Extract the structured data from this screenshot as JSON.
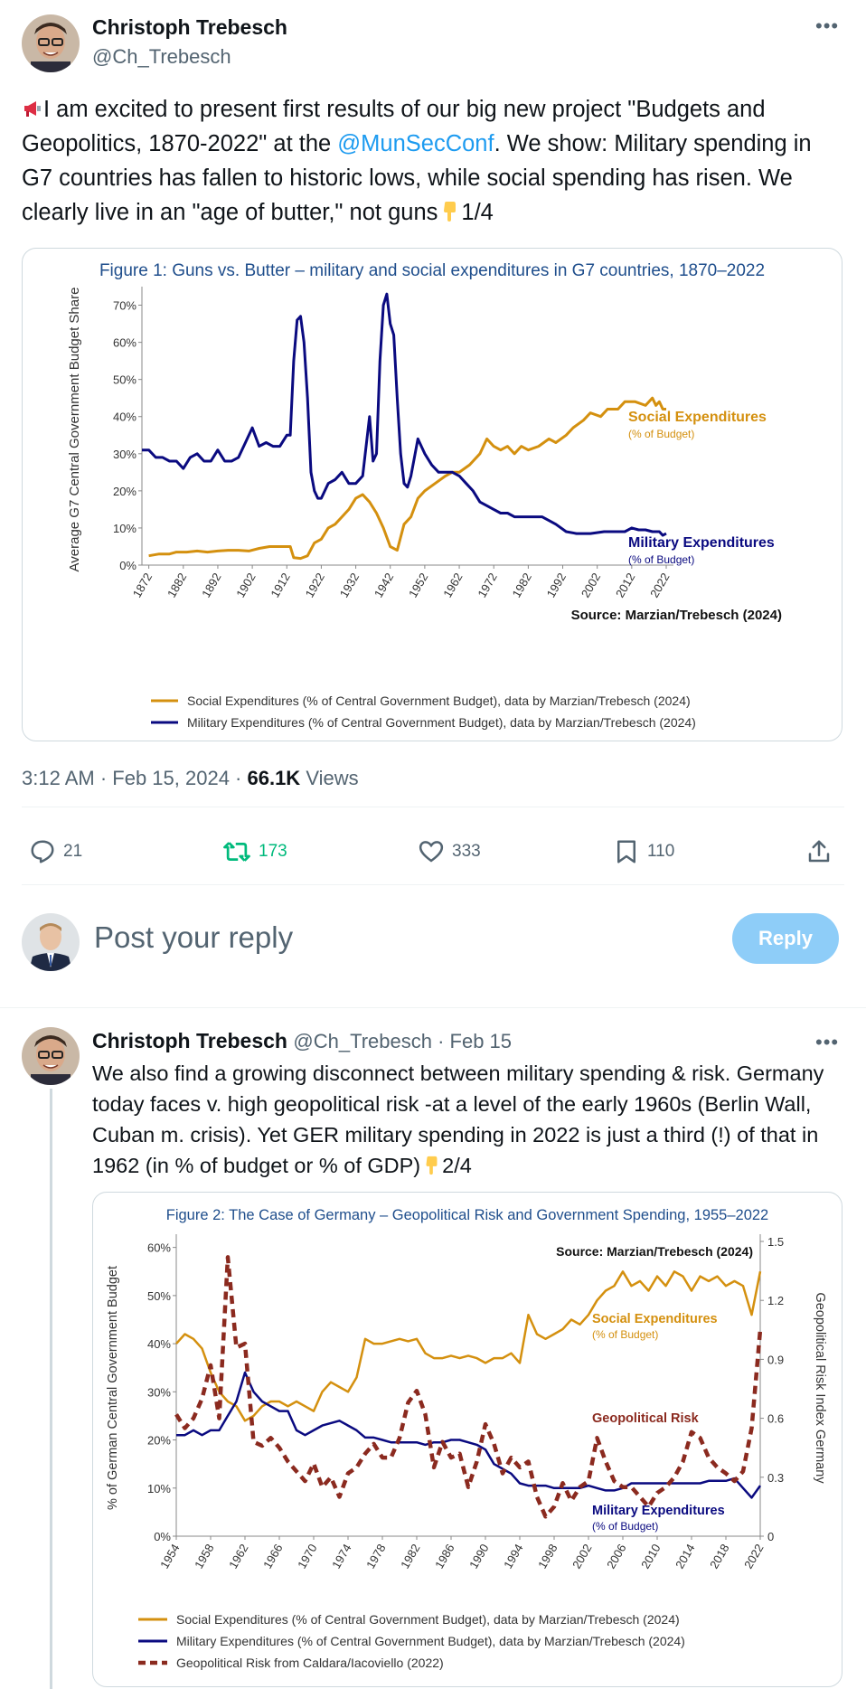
{
  "tweet1": {
    "author_name": "Christoph Trebesch",
    "author_handle": "@Ch_Trebesch",
    "text_before_mention": "I am excited to present first results of our big new project \"Budgets and Geopolitics, 1870-2022\" at the ",
    "mention": "@MunSecConf",
    "text_after_mention": ". We show: Military spending in G7 countries has fallen to historic lows, while social spending has risen. We clearly live in an \"age of butter,\" not guns",
    "counter": "1/4",
    "time": "3:12 AM · Feb 15, 2024 · ",
    "views_count": "66.1K",
    "views_label": " Views",
    "replies": "21",
    "reposts": "173",
    "likes": "333",
    "bookmarks": "110"
  },
  "reply_box": {
    "placeholder": "Post your reply",
    "button": "Reply"
  },
  "tweet2": {
    "author_name": "Christoph Trebesch",
    "author_handle": "@Ch_Trebesch",
    "date": " · Feb 15",
    "text": "We also find a growing disconnect between military spending & risk. Germany today faces v. high geopolitical risk -at a level of the early 1960s (Berlin Wall, Cuban m. crisis). Yet GER military spending in 2022 is just a third (!) of that in 1962 (in % of budget or % of GDP)",
    "counter": "2/4"
  },
  "colors": {
    "social": "#d4900f",
    "military": "#0a0a80",
    "geo": "#8b2a1f",
    "title": "#1f4e8c",
    "link": "#1d9bf0",
    "repost": "#00ba7c"
  },
  "chart_data": [
    {
      "type": "line",
      "title": "Figure 1: Guns vs. Butter – military and social expenditures in G7 countries, 1870–2022",
      "ylabel": "Average G7 Central Government Budget Share",
      "y_ticks": [
        "0%",
        "10%",
        "20%",
        "30%",
        "40%",
        "50%",
        "60%",
        "70%"
      ],
      "x_ticks": [
        "1872",
        "1882",
        "1892",
        "1902",
        "1912",
        "1922",
        "1932",
        "1942",
        "1952",
        "1962",
        "1972",
        "1982",
        "1992",
        "2002",
        "2012",
        "2022"
      ],
      "xlim": [
        1870,
        2022
      ],
      "ylim": [
        0,
        75
      ],
      "source": "Source: Marzian/Trebesch (2024)",
      "series": [
        {
          "name": "Social Expenditures (% of Central Government Budget), data by Marzian/Trebesch (2024)",
          "label": "Social Expenditures",
          "sublabel": "(% of Budget)",
          "x": [
            1872,
            1875,
            1878,
            1880,
            1883,
            1886,
            1889,
            1892,
            1895,
            1898,
            1901,
            1904,
            1907,
            1910,
            1913,
            1914,
            1916,
            1918,
            1920,
            1922,
            1924,
            1926,
            1928,
            1930,
            1932,
            1934,
            1936,
            1938,
            1940,
            1942,
            1944,
            1946,
            1948,
            1950,
            1952,
            1955,
            1958,
            1960,
            1962,
            1965,
            1968,
            1970,
            1972,
            1974,
            1976,
            1978,
            1980,
            1982,
            1985,
            1988,
            1990,
            1993,
            1995,
            1998,
            2000,
            2003,
            2005,
            2008,
            2010,
            2013,
            2016,
            2018,
            2019,
            2020,
            2021,
            2022
          ],
          "y": [
            2.5,
            3,
            3,
            3.5,
            3.5,
            3.8,
            3.5,
            3.8,
            4,
            4,
            3.8,
            4.5,
            5,
            5,
            5,
            2,
            1.8,
            2.5,
            6,
            7,
            10,
            11,
            13,
            15,
            18,
            19,
            17,
            14,
            10,
            5,
            4,
            11,
            13,
            18,
            20,
            22,
            24,
            25,
            25,
            27,
            30,
            34,
            32,
            31,
            32,
            30,
            32,
            31,
            32,
            34,
            33,
            35,
            37,
            39,
            41,
            40,
            42,
            42,
            44,
            44,
            43,
            45,
            43,
            44,
            42,
            42
          ]
        },
        {
          "name": "Military Expenditures (% of Central Government Budget), data by Marzian/Trebesch (2024)",
          "label": "Military Expenditures",
          "sublabel": "(% of Budget)",
          "x": [
            1870,
            1872,
            1874,
            1876,
            1878,
            1880,
            1882,
            1884,
            1886,
            1888,
            1890,
            1892,
            1894,
            1896,
            1898,
            1900,
            1902,
            1904,
            1906,
            1908,
            1910,
            1912,
            1913,
            1914,
            1915,
            1916,
            1917,
            1918,
            1919,
            1920,
            1921,
            1922,
            1924,
            1926,
            1928,
            1930,
            1932,
            1934,
            1936,
            1937,
            1938,
            1939,
            1940,
            1941,
            1942,
            1943,
            1944,
            1945,
            1946,
            1947,
            1948,
            1950,
            1952,
            1954,
            1956,
            1958,
            1960,
            1962,
            1964,
            1966,
            1968,
            1970,
            1972,
            1974,
            1976,
            1978,
            1980,
            1983,
            1986,
            1988,
            1990,
            1993,
            1996,
            2000,
            2004,
            2006,
            2008,
            2010,
            2012,
            2014,
            2016,
            2018,
            2020,
            2021,
            2022
          ],
          "y": [
            31,
            31,
            29,
            29,
            28,
            28,
            26,
            29,
            30,
            28,
            28,
            31,
            28,
            28,
            29,
            33,
            37,
            32,
            33,
            32,
            32,
            35,
            35,
            55,
            66,
            67,
            60,
            45,
            25,
            20,
            18,
            18,
            22,
            23,
            25,
            22,
            22,
            24,
            40,
            28,
            30,
            55,
            70,
            73,
            65,
            62,
            45,
            30,
            22,
            21,
            24,
            34,
            30,
            27,
            25,
            25,
            25,
            24,
            22,
            20,
            17,
            16,
            15,
            14,
            14,
            13,
            13,
            13,
            13,
            12,
            11,
            9,
            8.5,
            8.5,
            9,
            9,
            9,
            9,
            10,
            9.5,
            9.5,
            9,
            9,
            8,
            8.5
          ]
        }
      ]
    },
    {
      "type": "line",
      "title": "Figure 2: The Case of Germany – Geopolitical Risk and Government Spending, 1955–2022",
      "ylabel": "% of German Central Government Budget",
      "y2label": "Geopolitical Risk Index Germany",
      "y_ticks": [
        "0%",
        "10%",
        "20%",
        "30%",
        "40%",
        "50%",
        "60%"
      ],
      "y2_ticks": [
        "0",
        "0.3",
        "0.6",
        "0.9",
        "1.2",
        "1.5"
      ],
      "x_ticks": [
        "1954",
        "1958",
        "1962",
        "1966",
        "1970",
        "1974",
        "1978",
        "1982",
        "1986",
        "1990",
        "1994",
        "1998",
        "2002",
        "2006",
        "2010",
        "2014",
        "2018",
        "2022"
      ],
      "xlim": [
        1954,
        2022
      ],
      "ylim": [
        0,
        62
      ],
      "y2lim": [
        0,
        1.5
      ],
      "source": "Source: Marzian/Trebesch (2024)",
      "series": [
        {
          "name": "Social Expenditures (% of Central Government Budget), data by Marzian/Trebesch (2024)",
          "label": "Social Expenditures",
          "sublabel": "(% of Budget)",
          "x": [
            1954,
            1955,
            1956,
            1957,
            1958,
            1959,
            1960,
            1961,
            1962,
            1963,
            1964,
            1965,
            1966,
            1967,
            1968,
            1969,
            1970,
            1971,
            1972,
            1973,
            1974,
            1975,
            1976,
            1977,
            1978,
            1979,
            1980,
            1981,
            1982,
            1983,
            1984,
            1985,
            1986,
            1987,
            1988,
            1989,
            1990,
            1991,
            1992,
            1993,
            1994,
            1995,
            1996,
            1997,
            1998,
            1999,
            2000,
            2001,
            2002,
            2003,
            2004,
            2005,
            2006,
            2007,
            2008,
            2009,
            2010,
            2011,
            2012,
            2013,
            2014,
            2015,
            2016,
            2017,
            2018,
            2019,
            2020,
            2021,
            2022
          ],
          "y": [
            40,
            42,
            41,
            39,
            34,
            30,
            28,
            27,
            24,
            25,
            27,
            28,
            28,
            27,
            28,
            27,
            26,
            30,
            32,
            31,
            30,
            33,
            41,
            40,
            40,
            40.5,
            41,
            40.5,
            41,
            38,
            37,
            37,
            37.5,
            37,
            37.5,
            37,
            36,
            37,
            37,
            38,
            36,
            46,
            42,
            41,
            42,
            43,
            45,
            44,
            46,
            49,
            51,
            52,
            55,
            52,
            53,
            51,
            54,
            52,
            55,
            54,
            51,
            54,
            53,
            54,
            52,
            53,
            52,
            46,
            55
          ]
        },
        {
          "name": "Military Expenditures (% of Central Government Budget), data by Marzian/Trebesch (2024)",
          "label": "Military Expenditures",
          "sublabel": "(% of Budget)",
          "x": [
            1954,
            1955,
            1956,
            1957,
            1958,
            1959,
            1960,
            1961,
            1962,
            1963,
            1964,
            1965,
            1966,
            1967,
            1968,
            1969,
            1970,
            1971,
            1972,
            1973,
            1974,
            1975,
            1976,
            1977,
            1978,
            1979,
            1980,
            1981,
            1982,
            1983,
            1984,
            1985,
            1986,
            1987,
            1988,
            1989,
            1990,
            1991,
            1992,
            1993,
            1994,
            1995,
            1996,
            1997,
            1998,
            1999,
            2000,
            2001,
            2002,
            2003,
            2004,
            2005,
            2006,
            2007,
            2008,
            2009,
            2010,
            2011,
            2012,
            2013,
            2014,
            2015,
            2016,
            2017,
            2018,
            2019,
            2020,
            2021,
            2022
          ],
          "y": [
            21,
            21,
            22,
            21,
            22,
            22,
            25,
            28,
            34,
            30,
            28,
            27,
            26,
            26,
            22,
            21,
            22,
            23,
            23.5,
            24,
            23,
            22,
            20.5,
            20.5,
            20,
            19.5,
            19.5,
            19.5,
            19.5,
            19,
            19.5,
            19.5,
            20,
            20,
            19.5,
            19,
            18,
            15,
            14,
            13,
            11,
            10.5,
            10.5,
            10.5,
            10,
            10,
            10,
            10,
            10.5,
            10,
            9.5,
            9.5,
            10,
            11,
            11,
            11,
            11,
            11,
            11,
            11,
            11,
            11,
            11.5,
            11.5,
            11.5,
            12,
            10,
            8,
            10.5
          ]
        },
        {
          "name": "Geopolitical Risk from Caldara/Iacoviello (2022)",
          "label": "Geopolitical Risk",
          "axis": "right",
          "x": [
            1954,
            1955,
            1956,
            1957,
            1958,
            1959,
            1960,
            1961,
            1962,
            1963,
            1964,
            1965,
            1966,
            1967,
            1968,
            1969,
            1970,
            1971,
            1972,
            1973,
            1974,
            1975,
            1976,
            1977,
            1978,
            1979,
            1980,
            1981,
            1982,
            1983,
            1984,
            1985,
            1986,
            1987,
            1988,
            1989,
            1990,
            1991,
            1992,
            1993,
            1994,
            1995,
            1996,
            1997,
            1998,
            1999,
            2000,
            2001,
            2002,
            2003,
            2004,
            2005,
            2006,
            2007,
            2008,
            2009,
            2010,
            2011,
            2012,
            2013,
            2014,
            2015,
            2016,
            2017,
            2018,
            2019,
            2020,
            2021,
            2022
          ],
          "y": [
            0.62,
            0.55,
            0.6,
            0.7,
            0.87,
            0.6,
            1.42,
            0.96,
            0.98,
            0.48,
            0.46,
            0.5,
            0.45,
            0.38,
            0.33,
            0.28,
            0.37,
            0.25,
            0.3,
            0.2,
            0.32,
            0.35,
            0.42,
            0.47,
            0.4,
            0.4,
            0.5,
            0.68,
            0.74,
            0.62,
            0.35,
            0.48,
            0.4,
            0.42,
            0.25,
            0.38,
            0.57,
            0.47,
            0.32,
            0.4,
            0.35,
            0.38,
            0.2,
            0.1,
            0.15,
            0.27,
            0.18,
            0.25,
            0.28,
            0.5,
            0.38,
            0.28,
            0.25,
            0.25,
            0.2,
            0.15,
            0.22,
            0.25,
            0.3,
            0.38,
            0.53,
            0.5,
            0.4,
            0.35,
            0.32,
            0.28,
            0.33,
            0.55,
            1.05
          ]
        }
      ]
    }
  ]
}
